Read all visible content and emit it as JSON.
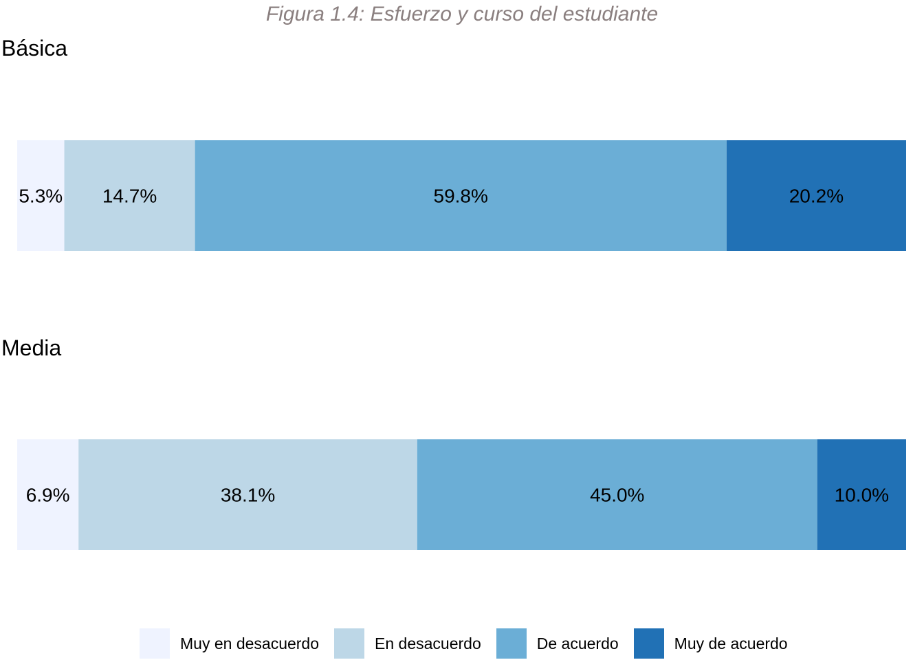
{
  "chart_data": {
    "type": "bar",
    "orientation": "horizontal-stacked-100",
    "title": "Figura 1.4: Esfuerzo y curso del estudiante",
    "categories": [
      "Muy en desacuerdo",
      "En desacuerdo",
      "De acuerdo",
      "Muy de acuerdo"
    ],
    "colors": [
      "#eff3ff",
      "#bdd7e7",
      "#6baed6",
      "#2171b5"
    ],
    "panels": [
      {
        "name": "Básica",
        "values": [
          5.3,
          14.7,
          59.8,
          20.2
        ],
        "labels": [
          "5.3%",
          "14.7%",
          "59.8%",
          "20.2%"
        ]
      },
      {
        "name": "Media",
        "values": [
          6.9,
          38.1,
          45.0,
          10.0
        ],
        "labels": [
          "6.9%",
          "38.1%",
          "45.0%",
          "10.0%"
        ]
      }
    ],
    "xlim": [
      0,
      100
    ],
    "legend_position": "bottom",
    "grid": false
  }
}
